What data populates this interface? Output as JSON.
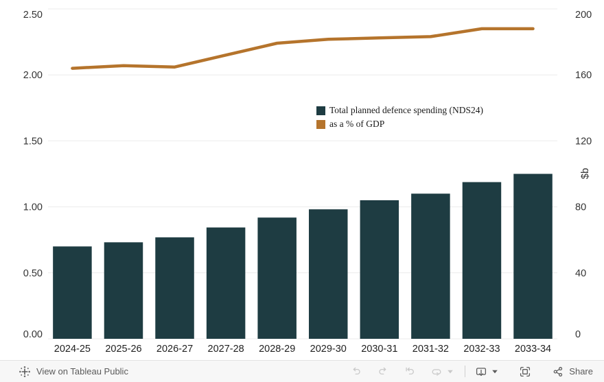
{
  "chart_data": {
    "type": "combo-bar-line",
    "title": "",
    "categories": [
      "2024-25",
      "2025-26",
      "2026-27",
      "2027-28",
      "2028-29",
      "2029-30",
      "2030-31",
      "2031-32",
      "2032-33",
      "2033-34"
    ],
    "series": [
      {
        "name": "Total planned defence spending (NDS24)",
        "type": "bar",
        "axis": "right",
        "color": "#1e3c42",
        "values": [
          56,
          58.5,
          61.5,
          67.5,
          73.5,
          78.5,
          84,
          88,
          95,
          100
        ]
      },
      {
        "name": "as a % of GDP",
        "type": "line",
        "axis": "left",
        "color": "#b5742c",
        "values": [
          2.05,
          2.07,
          2.06,
          2.15,
          2.24,
          2.27,
          2.28,
          2.29,
          2.35,
          2.35
        ]
      }
    ],
    "left_axis": {
      "min": 0,
      "max": 2.5,
      "tick_values": [
        0,
        0.5,
        1,
        1.5,
        2,
        2.5
      ],
      "tick_labels": [
        "0.00",
        "0.50",
        "1.00",
        "1.50",
        "2.00",
        "2.50"
      ],
      "label": ""
    },
    "right_axis": {
      "min": 0,
      "max": 200,
      "tick_values": [
        0,
        40,
        80,
        120,
        160,
        200
      ],
      "tick_labels": [
        "0",
        "40",
        "80",
        "120",
        "160",
        "200"
      ],
      "label": "$b"
    },
    "grid": "horizontal",
    "legend_position": "floating-center-right"
  },
  "toolbar": {
    "view_on_label": "View on Tableau Public",
    "share_label": "Share",
    "icons": [
      "tableau-logo",
      "undo",
      "redo",
      "reset",
      "refresh",
      "dropdown-caret",
      "download",
      "dropdown-caret",
      "fullscreen",
      "share"
    ]
  },
  "colors": {
    "bar": "#1e3c42",
    "line": "#b5742c",
    "grid": "#ebebeb",
    "tick_text": "#333333",
    "category_text": "#1f1f1f",
    "toolbar_bg": "#f7f7f7",
    "toolbar_border": "#e2e2e2",
    "toolbar_text": "#5a5a5a",
    "icon_enabled": "#5c5c5c",
    "icon_disabled": "#c9c9c9"
  }
}
